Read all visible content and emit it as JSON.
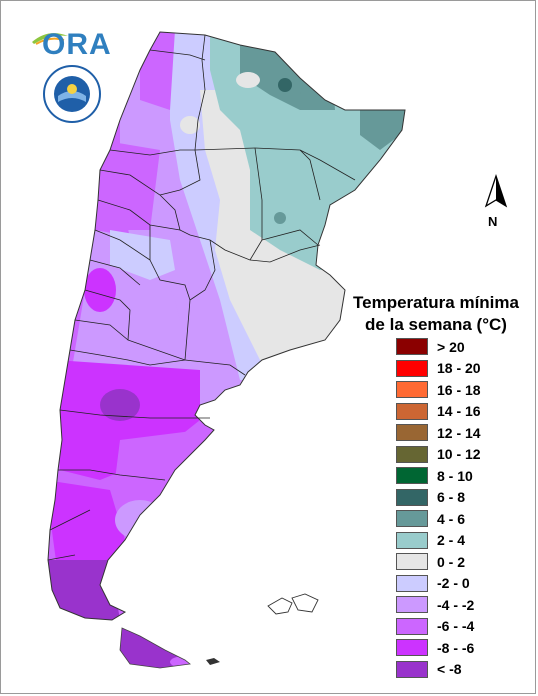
{
  "logo": {
    "text": "ORA"
  },
  "seal": {
    "icon": "institutional-seal-icon"
  },
  "north_arrow": {
    "label": "N"
  },
  "legend": {
    "title_line1": "Temperatura mínima",
    "title_line2": "de la semana (°C)",
    "items": [
      {
        "label": "> 20",
        "color": "#8b0000"
      },
      {
        "label": "18 - 20",
        "color": "#ff0000"
      },
      {
        "label": "16 - 18",
        "color": "#ff6a33"
      },
      {
        "label": "14 - 16",
        "color": "#cc6633"
      },
      {
        "label": "12 - 14",
        "color": "#996633"
      },
      {
        "label": "10 - 12",
        "color": "#666633"
      },
      {
        "label": "8 - 10",
        "color": "#006633"
      },
      {
        "label": "6 - 8",
        "color": "#336666"
      },
      {
        "label": "4 - 6",
        "color": "#669999"
      },
      {
        "label": "2 - 4",
        "color": "#99cccc"
      },
      {
        "label": "0 - 2",
        "color": "#e6e6e6"
      },
      {
        "label": "-2 - 0",
        "color": "#ccccff"
      },
      {
        "label": "-4 - -2",
        "color": "#cc99ff"
      },
      {
        "label": "-6 - -4",
        "color": "#cc66ff"
      },
      {
        "label": "-8 - -6",
        "color": "#cc33ff"
      },
      {
        "label": "< -8",
        "color": "#9933cc"
      }
    ]
  }
}
